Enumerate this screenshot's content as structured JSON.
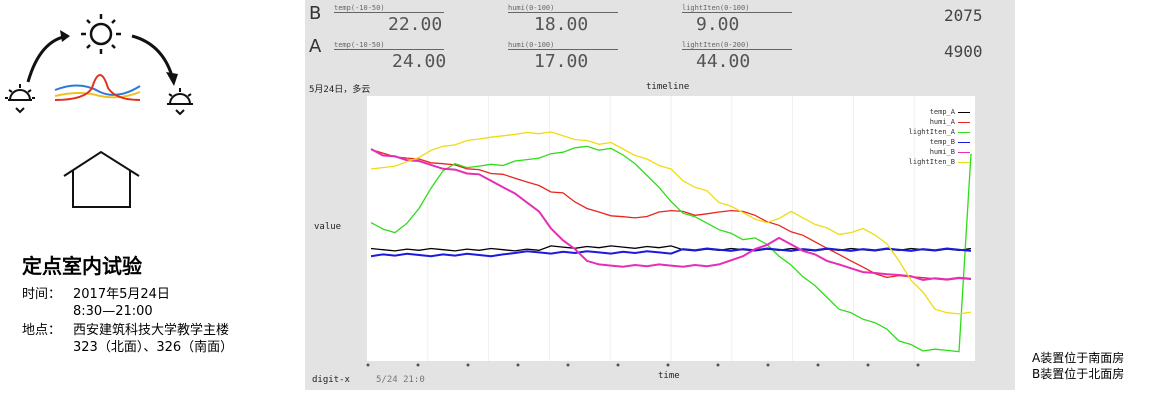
{
  "left": {
    "title": "定点室内试验",
    "time_label": "时间：",
    "time_line1": "2017年5月24日",
    "time_line2": "8:30—21:00",
    "place_label": "地点：",
    "place_line1": "西安建筑科技大学教学主楼",
    "place_line2": "323（北面）、326（南面）",
    "icons": [
      "sunrise-icon",
      "sun-icon",
      "sunset-icon",
      "house-icon",
      "curves-icon"
    ]
  },
  "readouts": {
    "B": {
      "label": "B",
      "temp_label": "temp(-10-50)",
      "temp_value": "22.00",
      "humi_label": "humi(0-100)",
      "humi_value": "18.00",
      "light_label": "lightIten(0-100)",
      "light_value": "9.00",
      "count": "2075"
    },
    "A": {
      "label": "A",
      "temp_label": "temp(-10-50)",
      "temp_value": "24.00",
      "humi_label": "humi(0-100)",
      "humi_value": "17.00",
      "light_label": "lightIten(0-200)",
      "light_value": "44.00",
      "count": "4900"
    }
  },
  "plot_header": {
    "date": "5月24日，多云",
    "timeline": "timeline",
    "value_label": "value",
    "x_label": "time",
    "digit_label": "digit-x",
    "digit_value": "5/24 21:0"
  },
  "notes": {
    "line1": "A装置位于南面房",
    "line2": "B装置位于北面房"
  },
  "colors": {
    "temp_A": "#000000",
    "humi_A": "#e8261e",
    "lightIten_A": "#2fdc1a",
    "temp_B": "#1a1ae0",
    "humi_B": "#e42fb5",
    "lightIten_B": "#f0dc12"
  },
  "chart_data": {
    "type": "line",
    "title": "timeline",
    "xlabel": "time",
    "ylabel": "value",
    "x": [
      0,
      2,
      4,
      6,
      8,
      10,
      12,
      14,
      16,
      18,
      20,
      22,
      24,
      26,
      28,
      30,
      32,
      34,
      36,
      38,
      40,
      42,
      44,
      46,
      48,
      50,
      52,
      54,
      56,
      58,
      60,
      62,
      64,
      66,
      68,
      70,
      72,
      74,
      76,
      78,
      80,
      82,
      84,
      86,
      88,
      90,
      92,
      94,
      96,
      98,
      100
    ],
    "ylim": [
      0,
      100
    ],
    "legend_position": "top-right",
    "series": [
      {
        "name": "temp_A",
        "color": "#000000",
        "values": [
          42,
          42,
          42,
          42,
          42,
          42,
          42,
          42,
          42,
          42,
          42,
          42,
          42,
          42,
          42,
          43,
          43,
          43,
          43,
          43,
          43,
          43,
          43,
          43,
          43,
          43,
          42,
          42,
          42,
          42,
          42,
          42,
          42,
          42,
          42,
          42,
          42,
          42,
          42,
          42,
          42,
          42,
          42,
          42,
          42,
          42,
          42,
          42,
          42,
          42,
          42
        ]
      },
      {
        "name": "humi_A",
        "color": "#e8261e",
        "values": [
          80,
          78,
          77,
          77,
          76,
          75,
          74,
          74,
          73,
          72,
          71,
          70,
          69,
          68,
          66,
          64,
          63,
          60,
          58,
          56,
          55,
          54,
          54,
          55,
          56,
          57,
          56,
          55,
          56,
          56,
          57,
          56,
          55,
          53,
          51,
          49,
          47,
          45,
          43,
          40,
          38,
          35,
          33,
          32,
          32,
          32,
          31,
          31,
          31,
          31,
          31
        ]
      },
      {
        "name": "lightIten_A",
        "color": "#2fdc1a",
        "values": [
          52,
          50,
          48,
          52,
          58,
          65,
          72,
          74,
          73,
          74,
          74,
          74,
          75,
          76,
          77,
          78,
          79,
          80,
          81,
          80,
          80,
          78,
          74,
          70,
          66,
          60,
          56,
          54,
          52,
          50,
          48,
          46,
          46,
          44,
          40,
          36,
          32,
          28,
          24,
          20,
          18,
          16,
          14,
          12,
          8,
          6,
          4,
          4,
          4,
          4,
          78
        ]
      },
      {
        "name": "temp_B",
        "color": "#1a1ae0",
        "values": [
          40,
          40,
          40,
          40,
          40,
          40,
          40,
          40,
          40,
          40,
          40,
          40,
          41,
          41,
          41,
          41,
          41,
          41,
          41,
          41,
          41,
          41,
          41,
          41,
          41,
          41,
          42,
          42,
          42,
          42,
          42,
          42,
          42,
          42,
          42,
          42,
          42,
          42,
          42,
          42,
          42,
          42,
          42,
          42,
          42,
          42,
          42,
          42,
          42,
          42,
          42
        ]
      },
      {
        "name": "humi_B",
        "color": "#e42fb5",
        "values": [
          80,
          78,
          77,
          76,
          75,
          74,
          73,
          72,
          71,
          70,
          68,
          66,
          63,
          60,
          56,
          50,
          46,
          42,
          38,
          36,
          36,
          36,
          36,
          36,
          36,
          36,
          36,
          36,
          36,
          36,
          38,
          40,
          42,
          44,
          46,
          44,
          42,
          40,
          38,
          36,
          35,
          34,
          33,
          33,
          32,
          32,
          31,
          31,
          31,
          31,
          31
        ]
      },
      {
        "name": "lightIten_B",
        "color": "#f0dc12",
        "values": [
          72,
          73,
          74,
          75,
          77,
          79,
          81,
          82,
          83,
          84,
          84,
          85,
          86,
          86,
          86,
          86,
          85,
          84,
          83,
          82,
          82,
          80,
          78,
          76,
          74,
          72,
          68,
          66,
          64,
          60,
          58,
          56,
          54,
          52,
          54,
          56,
          54,
          52,
          50,
          48,
          48,
          50,
          48,
          44,
          38,
          30,
          26,
          20,
          18,
          18,
          18
        ]
      }
    ]
  }
}
